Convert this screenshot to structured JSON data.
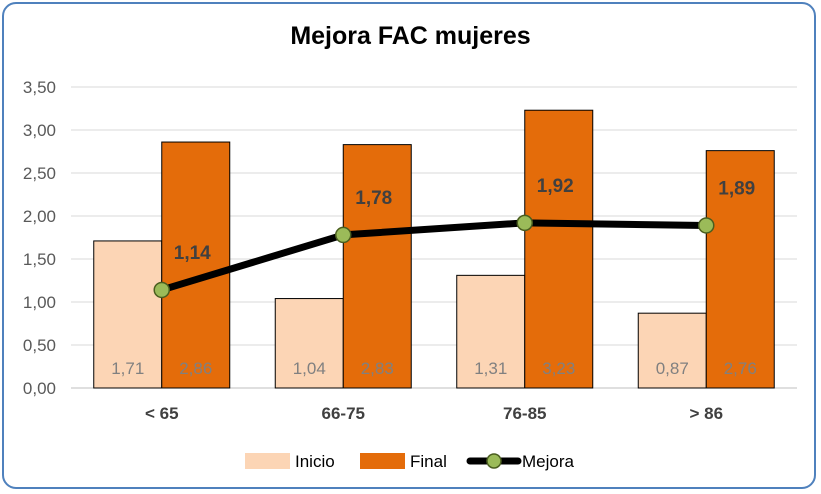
{
  "chart_data": {
    "type": "bar",
    "title": "Mejora FAC mujeres",
    "categories": [
      "< 65",
      "66-75",
      "76-85",
      "> 86"
    ],
    "series": [
      {
        "name": "Inicio",
        "type": "bar",
        "values": [
          1.71,
          1.04,
          1.31,
          0.87
        ],
        "labels": [
          "1,71",
          "1,04",
          "1,31",
          "0,87"
        ],
        "color": "#fcd5b5"
      },
      {
        "name": "Final",
        "type": "bar",
        "values": [
          2.86,
          2.83,
          3.23,
          2.76
        ],
        "labels": [
          "2,86",
          "2,83",
          "3,23",
          "2,76"
        ],
        "color": "#e46c0a"
      },
      {
        "name": "Mejora",
        "type": "line",
        "values": [
          1.14,
          1.78,
          1.92,
          1.89
        ],
        "labels": [
          "1,14",
          "1,78",
          "1,92",
          "1,89"
        ],
        "color": "#000000",
        "marker_color": "#9bbb59"
      }
    ],
    "ylim": [
      0,
      3.5
    ],
    "yticks": [
      "0,00",
      "0,50",
      "1,00",
      "1,50",
      "2,00",
      "2,50",
      "3,00",
      "3,50"
    ],
    "grid": true,
    "legend": "bottom"
  }
}
